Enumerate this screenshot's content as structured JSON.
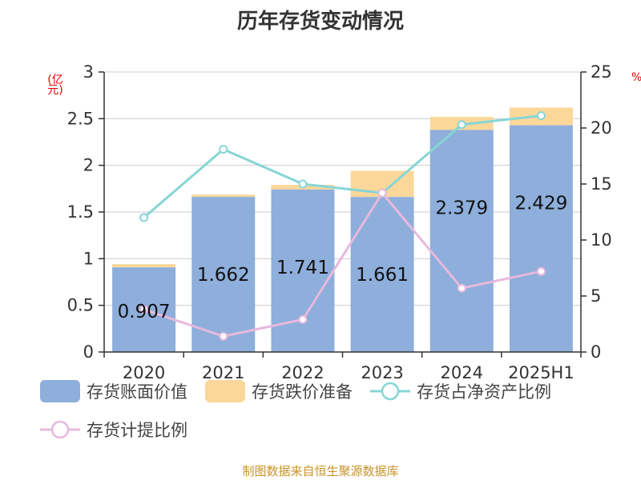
{
  "title": "历年存货变动情况",
  "source": "制图数据来自恒生聚源数据库",
  "colors": {
    "book_value": "#8eaedb",
    "impairment": "#fcd79a",
    "ratio_net_assets": "#86d5d6",
    "provision_ratio": "#e7b9dd",
    "axis": "#333333",
    "grid": "#cccccc",
    "unit": "#e60000"
  },
  "chart_data": {
    "type": "bar",
    "categories": [
      "2020",
      "2021",
      "2022",
      "2023",
      "2024",
      "2025H1"
    ],
    "left_axis": {
      "unit_label": "(亿元)",
      "ylim": [
        0,
        3
      ],
      "ticks": [
        "0",
        "0.5",
        "1",
        "1.5",
        "2",
        "2.5",
        "3"
      ]
    },
    "right_axis": {
      "unit_label": "%",
      "ylim": [
        0,
        25
      ],
      "ticks": [
        "0",
        "5",
        "10",
        "15",
        "20",
        "25"
      ]
    },
    "series": [
      {
        "name": "存货账面价值",
        "type": "bar",
        "stack": "inv",
        "axis": "left",
        "values": [
          0.907,
          1.662,
          1.741,
          1.661,
          2.379,
          2.429
        ],
        "labels": [
          "0.907",
          "1.662",
          "1.741",
          "1.661",
          "2.379",
          "2.429"
        ]
      },
      {
        "name": "存货跌价准备",
        "type": "bar",
        "stack": "inv",
        "axis": "left",
        "values": [
          0.035,
          0.024,
          0.05,
          0.28,
          0.14,
          0.19
        ]
      },
      {
        "name": "存货占净资产比例",
        "type": "line",
        "axis": "right",
        "values": [
          12.0,
          18.1,
          15.0,
          14.2,
          20.3,
          21.1
        ]
      },
      {
        "name": "存货计提比例",
        "type": "line",
        "axis": "right",
        "values": [
          3.8,
          1.4,
          2.9,
          14.2,
          5.7,
          7.2
        ]
      }
    ],
    "grid": true,
    "legend_position": "bottom"
  }
}
